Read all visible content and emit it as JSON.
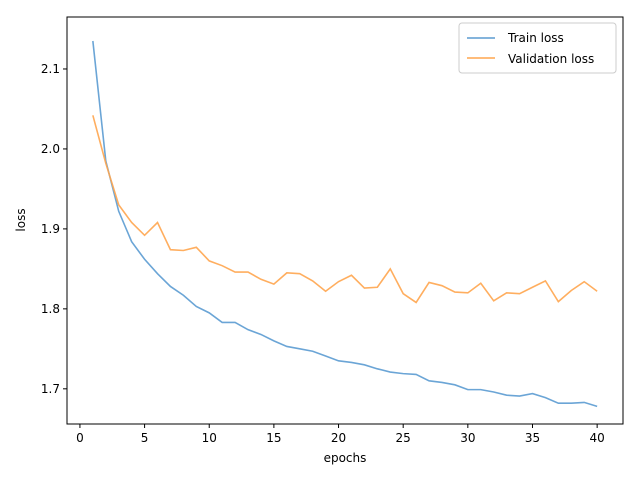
{
  "chart_data": {
    "type": "line",
    "title": "",
    "xlabel": "epochs",
    "ylabel": "loss",
    "xlim": [
      -1,
      42
    ],
    "ylim": [
      1.656,
      2.165
    ],
    "xticks": [
      0,
      5,
      10,
      15,
      20,
      25,
      30,
      35,
      40
    ],
    "yticks": [
      1.7,
      1.8,
      1.9,
      2.0,
      2.1
    ],
    "grid": false,
    "legend": "top-right",
    "x": [
      1,
      2,
      3,
      4,
      5,
      6,
      7,
      8,
      9,
      10,
      11,
      12,
      13,
      14,
      15,
      16,
      17,
      18,
      19,
      20,
      21,
      22,
      23,
      24,
      25,
      26,
      27,
      28,
      29,
      30,
      31,
      32,
      33,
      34,
      35,
      36,
      37,
      38,
      39,
      40
    ],
    "series": [
      {
        "name": "Train loss",
        "color": "#5b9bd1",
        "values": [
          2.135,
          1.985,
          1.922,
          1.884,
          1.862,
          1.844,
          1.828,
          1.817,
          1.803,
          1.795,
          1.783,
          1.783,
          1.774,
          1.768,
          1.76,
          1.753,
          1.75,
          1.747,
          1.741,
          1.735,
          1.733,
          1.73,
          1.725,
          1.721,
          1.719,
          1.718,
          1.71,
          1.708,
          1.705,
          1.699,
          1.699,
          1.696,
          1.692,
          1.691,
          1.694,
          1.689,
          1.682,
          1.682,
          1.683,
          1.678
        ]
      },
      {
        "name": "Validation loss",
        "color": "#ffa54e",
        "values": [
          2.042,
          1.982,
          1.93,
          1.908,
          1.892,
          1.908,
          1.874,
          1.873,
          1.877,
          1.86,
          1.854,
          1.846,
          1.846,
          1.837,
          1.831,
          1.845,
          1.844,
          1.835,
          1.822,
          1.834,
          1.842,
          1.826,
          1.827,
          1.85,
          1.819,
          1.808,
          1.833,
          1.829,
          1.821,
          1.82,
          1.832,
          1.81,
          1.82,
          1.819,
          1.827,
          1.835,
          1.809,
          1.823,
          1.834,
          1.822
        ]
      }
    ]
  }
}
